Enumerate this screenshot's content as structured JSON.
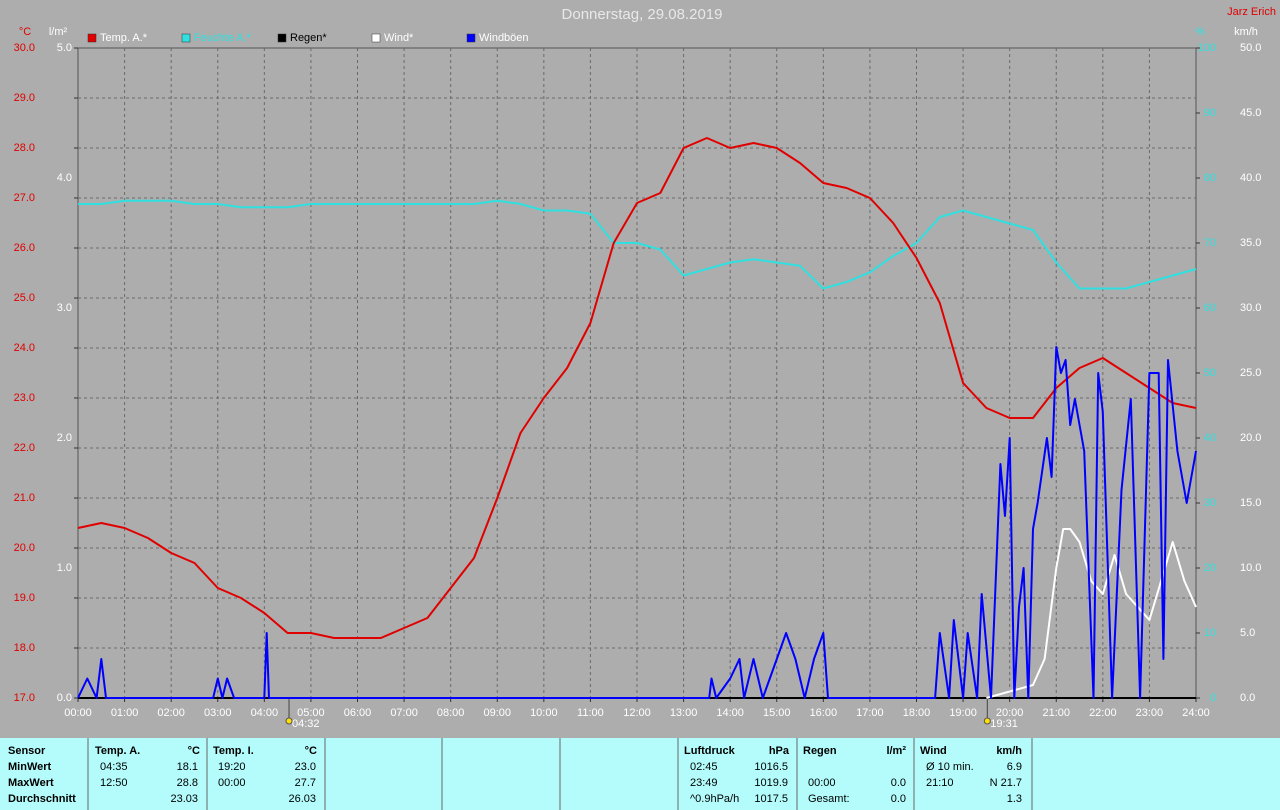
{
  "chart_data": {
    "type": "line",
    "title": "Donnerstag, 29.08.2019",
    "author": "Jarz Erich",
    "grid": true,
    "xlim": [
      0,
      24
    ],
    "xticks": [
      {
        "value": 0,
        "label": "00:00"
      },
      {
        "value": 1,
        "label": "01:00"
      },
      {
        "value": 2,
        "label": "02:00"
      },
      {
        "value": 3,
        "label": "03:00"
      },
      {
        "value": 4,
        "label": "04:00"
      },
      {
        "value": 5,
        "label": "05:00"
      },
      {
        "value": 6,
        "label": "06:00"
      },
      {
        "value": 7,
        "label": "07:00"
      },
      {
        "value": 8,
        "label": "08:00"
      },
      {
        "value": 9,
        "label": "09:00"
      },
      {
        "value": 10,
        "label": "10:00"
      },
      {
        "value": 11,
        "label": "11:00"
      },
      {
        "value": 12,
        "label": "12:00"
      },
      {
        "value": 13,
        "label": "13:00"
      },
      {
        "value": 14,
        "label": "14:00"
      },
      {
        "value": 15,
        "label": "15:00"
      },
      {
        "value": 16,
        "label": "16:00"
      },
      {
        "value": 17,
        "label": "17:00"
      },
      {
        "value": 18,
        "label": "18:00"
      },
      {
        "value": 19,
        "label": "19:00"
      },
      {
        "value": 20,
        "label": "20:00"
      },
      {
        "value": 21,
        "label": "21:00"
      },
      {
        "value": 22,
        "label": "22:00"
      },
      {
        "value": 23,
        "label": "23:00"
      },
      {
        "value": 24,
        "label": "24:00"
      }
    ],
    "sun": [
      {
        "value": 4.53,
        "label": "04:32"
      },
      {
        "value": 19.52,
        "label": "19:31"
      }
    ],
    "axes": {
      "temp": {
        "label": "°C",
        "color": "#e00000",
        "lim": [
          17,
          30
        ],
        "ticks": [
          {
            "value": 17,
            "label": "17.0"
          },
          {
            "value": 18,
            "label": "18.0"
          },
          {
            "value": 19,
            "label": "19.0"
          },
          {
            "value": 20,
            "label": "20.0"
          },
          {
            "value": 21,
            "label": "21.0"
          },
          {
            "value": 22,
            "label": "22.0"
          },
          {
            "value": 23,
            "label": "23.0"
          },
          {
            "value": 24,
            "label": "24.0"
          },
          {
            "value": 25,
            "label": "25.0"
          },
          {
            "value": 26,
            "label": "26.0"
          },
          {
            "value": 27,
            "label": "27.0"
          },
          {
            "value": 28,
            "label": "28.0"
          },
          {
            "value": 29,
            "label": "29.0"
          },
          {
            "value": 30,
            "label": "30.0"
          }
        ]
      },
      "rain": {
        "label": "l/m²",
        "color": "#ffffff",
        "lim": [
          0,
          5
        ],
        "ticks": [
          {
            "value": 0,
            "label": "0.0"
          },
          {
            "value": 1,
            "label": "1.0"
          },
          {
            "value": 2,
            "label": "2.0"
          },
          {
            "value": 3,
            "label": "3.0"
          },
          {
            "value": 4,
            "label": "4.0"
          },
          {
            "value": 5,
            "label": "5.0"
          }
        ]
      },
      "hum": {
        "label": "%",
        "color": "#30e0e0",
        "lim": [
          0,
          100
        ],
        "ticks": [
          0,
          10,
          20,
          30,
          40,
          50,
          60,
          70,
          80,
          90,
          100
        ]
      },
      "wind": {
        "label": "km/h",
        "color": "#ffffff",
        "lim": [
          0,
          50
        ],
        "ticks": [
          {
            "value": 0,
            "label": "0.0"
          },
          {
            "value": 5,
            "label": "5.0"
          },
          {
            "value": 10,
            "label": "10.0"
          },
          {
            "value": 15,
            "label": "15.0"
          },
          {
            "value": 20,
            "label": "20.0"
          },
          {
            "value": 25,
            "label": "25.0"
          },
          {
            "value": 30,
            "label": "30.0"
          },
          {
            "value": 35,
            "label": "35.0"
          },
          {
            "value": 40,
            "label": "40.0"
          },
          {
            "value": 45,
            "label": "45.0"
          },
          {
            "value": 50,
            "label": "50.0"
          }
        ]
      }
    },
    "x": [
      0,
      0.5,
      1,
      1.5,
      2,
      2.5,
      3,
      3.5,
      4,
      4.5,
      5,
      5.5,
      6,
      6.5,
      7,
      7.5,
      8,
      8.5,
      9,
      9.5,
      10,
      10.5,
      11,
      11.5,
      12,
      12.5,
      13,
      13.5,
      14,
      14.5,
      15,
      15.5,
      16,
      16.5,
      17,
      17.5,
      18,
      18.5,
      19,
      19.5,
      20,
      20.5,
      21,
      21.5,
      22,
      22.5,
      23,
      23.5,
      24
    ],
    "series": [
      {
        "name": "Temp. A.*",
        "color": "#e00000",
        "axis": "temp",
        "values": [
          20.4,
          20.5,
          20.4,
          20.2,
          19.9,
          19.7,
          19.2,
          19.0,
          18.7,
          18.3,
          18.3,
          18.2,
          18.2,
          18.2,
          18.4,
          18.6,
          19.2,
          19.8,
          21.0,
          22.3,
          23.0,
          23.6,
          24.5,
          26.1,
          26.9,
          27.1,
          28.0,
          28.2,
          28.0,
          28.1,
          28.0,
          27.7,
          27.3,
          27.2,
          27.0,
          26.5,
          25.8,
          24.9,
          23.3,
          22.8,
          22.6,
          22.6,
          23.2,
          23.6,
          23.8,
          23.5,
          23.2,
          22.9,
          22.8
        ]
      },
      {
        "name": "Feuchte A.*",
        "color": "#30e0e0",
        "axis": "hum",
        "values": [
          76,
          76,
          76.5,
          76.5,
          76.5,
          76,
          76,
          75.5,
          75.5,
          75.5,
          76,
          76,
          76,
          76,
          76,
          76,
          76,
          76,
          76.5,
          76,
          75,
          75,
          74.5,
          70,
          70,
          69,
          65,
          66,
          67,
          67.5,
          67,
          66.5,
          63,
          64,
          65.5,
          68,
          70,
          74,
          75,
          74,
          73,
          72,
          67,
          63,
          63,
          63,
          64,
          65,
          66
        ]
      },
      {
        "name": "Regen*",
        "color": "#000000",
        "axis": "rain",
        "x": [
          0,
          24
        ],
        "values": [
          0,
          0
        ]
      },
      {
        "name": "Wind*",
        "color": "#ffffff",
        "axis": "wind",
        "x": [
          19.5,
          20,
          20.5,
          20.75,
          21,
          21.15,
          21.3,
          21.5,
          21.75,
          22,
          22.25,
          22.5,
          22.75,
          23,
          23.25,
          23.5,
          23.75,
          24
        ],
        "values": [
          0,
          0.5,
          1,
          3,
          10,
          13,
          13,
          12,
          9,
          8,
          11,
          8,
          7,
          6,
          9,
          12,
          9,
          7
        ]
      },
      {
        "name": "Windböen",
        "color": "#0000ff",
        "axis": "wind",
        "x": [
          0,
          0.2,
          0.4,
          0.5,
          0.6,
          2.9,
          3.0,
          3.1,
          3.2,
          3.35,
          4.0,
          4.05,
          4.1,
          13.55,
          13.6,
          13.7,
          14.0,
          14.2,
          14.3,
          14.5,
          14.7,
          15.0,
          15.2,
          15.4,
          15.6,
          15.8,
          16.0,
          16.1,
          18.4,
          18.5,
          18.7,
          18.8,
          19.0,
          19.1,
          19.3,
          19.4,
          19.6,
          19.8,
          19.9,
          20.0,
          20.1,
          20.2,
          20.3,
          20.4,
          20.5,
          20.6,
          20.8,
          20.9,
          21.0,
          21.1,
          21.2,
          21.3,
          21.4,
          21.6,
          21.8,
          21.9,
          22.0,
          22.2,
          22.4,
          22.6,
          22.8,
          23.0,
          23.2,
          23.3,
          23.4,
          23.6,
          23.8,
          24.0
        ],
        "values": [
          0,
          1.5,
          0,
          3,
          0,
          0,
          1.5,
          0,
          1.5,
          0,
          0,
          5,
          0,
          0,
          1.5,
          0,
          1.5,
          3,
          0,
          3,
          0,
          3,
          5,
          3,
          0,
          3,
          5,
          0,
          0,
          5,
          0,
          6,
          0,
          5,
          0,
          8,
          0,
          18,
          14,
          20,
          0,
          7,
          10,
          0,
          13,
          15,
          20,
          17,
          27,
          25,
          26,
          21,
          23,
          19,
          0,
          25,
          22,
          0,
          16,
          23,
          0,
          25,
          25,
          3,
          26,
          19,
          15,
          19
        ]
      }
    ]
  },
  "table": {
    "columns": [
      "Sensor",
      "Temp. A.",
      "°C",
      "Temp. I.",
      "°C",
      "Luftdruck",
      "hPa",
      "Regen",
      "l/m²",
      "Wind",
      "km/h"
    ],
    "rows": [
      [
        "MinWert",
        "04:35",
        "18.1",
        "19:20",
        "23.0",
        "02:45",
        "1016.5",
        null,
        null,
        "Ø 10 min.",
        "6.9"
      ],
      [
        "MaxWert",
        "12:50",
        "28.8",
        "00:00",
        "27.7",
        "23:49",
        "1019.9",
        "00:00",
        "0.0",
        "21:10",
        "N 21.7"
      ],
      [
        "Durchschnitt",
        null,
        "23.03",
        null,
        "26.03",
        "^0.9hPa/h",
        "1017.5",
        "Gesamt:",
        "0.0",
        null,
        "1.3"
      ]
    ]
  }
}
